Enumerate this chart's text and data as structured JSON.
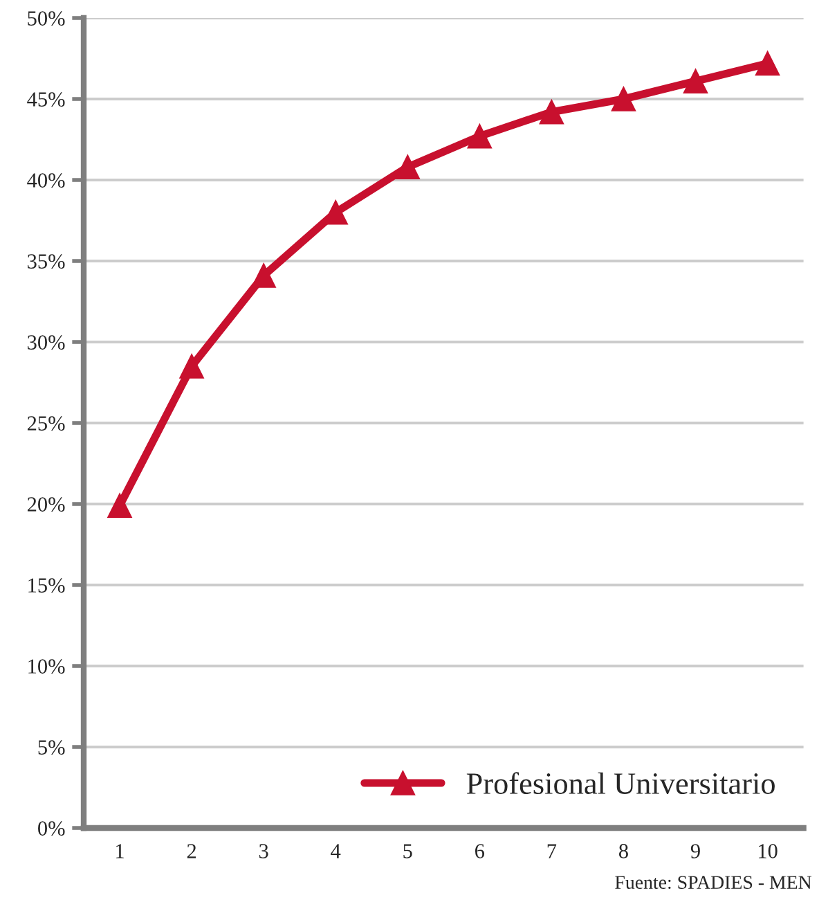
{
  "chart_data": {
    "type": "line",
    "categories": [
      "1",
      "2",
      "3",
      "4",
      "5",
      "6",
      "7",
      "8",
      "9",
      "10"
    ],
    "series": [
      {
        "name": "Profesional Universitario",
        "color": "#c8102e",
        "values": [
          19.9,
          28.5,
          34.1,
          38.0,
          40.8,
          42.7,
          44.2,
          45.0,
          46.1,
          47.2
        ]
      }
    ],
    "ylim": [
      0,
      50
    ],
    "yticks": [
      {
        "value": 0,
        "label": "0%"
      },
      {
        "value": 5,
        "label": "5%"
      },
      {
        "value": 10,
        "label": "10%"
      },
      {
        "value": 15,
        "label": "15%"
      },
      {
        "value": 20,
        "label": "20%"
      },
      {
        "value": 25,
        "label": "25%"
      },
      {
        "value": 30,
        "label": "30%"
      },
      {
        "value": 35,
        "label": "35%"
      },
      {
        "value": 40,
        "label": "40%"
      },
      {
        "value": 45,
        "label": "45%"
      },
      {
        "value": 50,
        "label": "50%"
      }
    ],
    "grid": "y",
    "legend": "bottom right",
    "marker": "triangle",
    "line_style": "solid",
    "annotations": [
      "Fuente: SPADIES - MEN"
    ]
  }
}
